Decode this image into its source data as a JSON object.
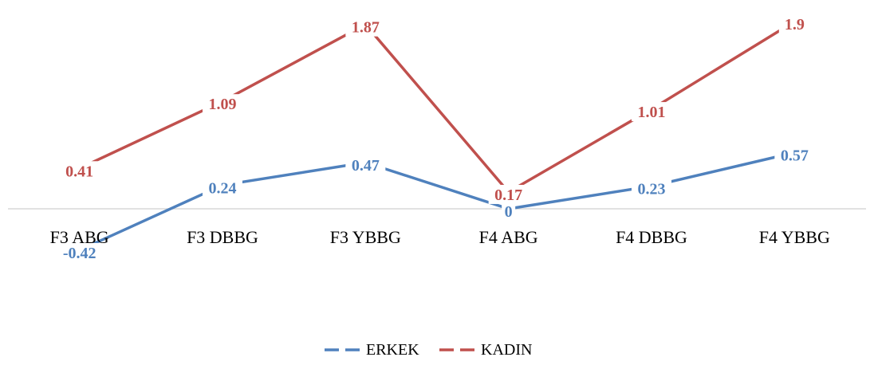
{
  "chart_data": {
    "type": "line",
    "categories": [
      "F3 ABG",
      "F3 DBBG",
      "F3 YBBG",
      "F4 ABG",
      "F4 DBBG",
      "F4 YBBG"
    ],
    "series": [
      {
        "name": "ERKEK",
        "values": [
          -0.42,
          0.24,
          0.47,
          0,
          0.23,
          0.57
        ],
        "color": "#4F81BD"
      },
      {
        "name": "KADIN",
        "values": [
          0.41,
          1.09,
          1.87,
          0.17,
          1.01,
          1.9
        ],
        "color": "#C0504D"
      }
    ],
    "title": "",
    "xlabel": "",
    "ylabel": "",
    "ylim": [
      -0.5,
      2.0
    ],
    "grid": false,
    "legend_position": "bottom"
  }
}
